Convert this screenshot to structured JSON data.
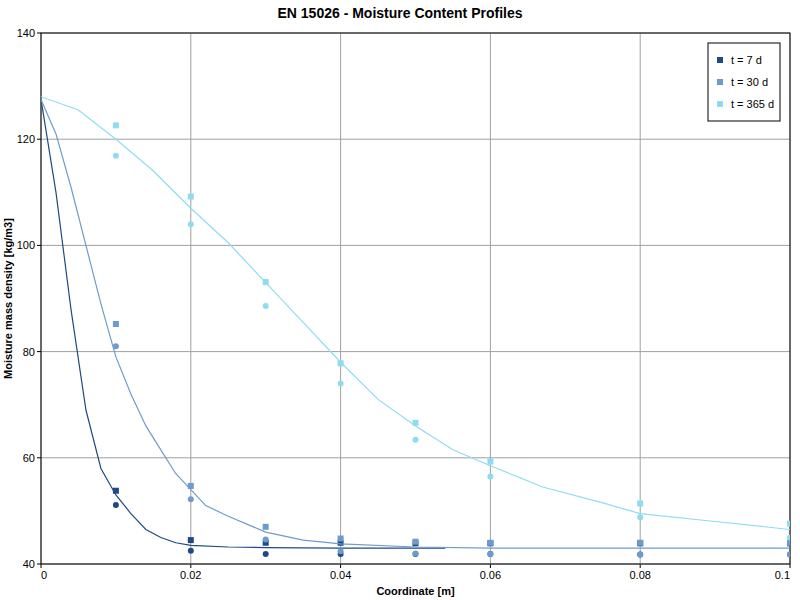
{
  "chart_data": {
    "type": "line",
    "title": "EN 15026 - Moisture Content Profiles",
    "x_label": "Coordinate [m]",
    "y_label": "Moisture mass density [kg/m3]",
    "xlim": [
      0,
      0.1
    ],
    "ylim": [
      40,
      140
    ],
    "xticks": [
      0,
      0.02,
      0.04,
      0.06,
      0.08,
      0.1
    ],
    "yticks": [
      40,
      60,
      80,
      100,
      120,
      140
    ],
    "grid": true,
    "legend": "top-right",
    "series": [
      {
        "name": "t = 7 d",
        "color": "#1d4a86",
        "type": "line",
        "marker": "square",
        "x": [
          0,
          0.002,
          0.004,
          0.006,
          0.008,
          0.01,
          0.012,
          0.014,
          0.016,
          0.018,
          0.02,
          0.025,
          0.03,
          0.04,
          0.054
        ],
        "values": [
          127.5,
          110,
          88,
          69,
          58,
          53,
          49.5,
          46.5,
          45,
          44,
          43.5,
          43.2,
          43.1,
          43.0,
          43.0
        ],
        "markers": [
          {
            "marker": "square",
            "x": [
              0.01,
              0.02,
              0.03,
              0.04,
              0.05,
              0.06,
              0.08,
              0.1
            ],
            "values": [
              53.8,
              44.5,
              44.0,
              44.0,
              43.9,
              43.9,
              43.9,
              43.9
            ]
          },
          {
            "marker": "circle",
            "x": [
              0.01,
              0.02,
              0.03,
              0.04,
              0.05,
              0.06,
              0.08,
              0.1
            ],
            "values": [
              51.1,
              42.5,
              41.9,
              41.9,
              41.9,
              41.9,
              41.8,
              41.8
            ]
          }
        ]
      },
      {
        "name": "t = 30 d",
        "color": "#6f9bcc",
        "type": "line",
        "marker": "square",
        "x": [
          0,
          0.002,
          0.004,
          0.006,
          0.008,
          0.01,
          0.012,
          0.014,
          0.016,
          0.018,
          0.02,
          0.022,
          0.025,
          0.03,
          0.035,
          0.04,
          0.05,
          0.06,
          0.08,
          0.1
        ],
        "values": [
          127.5,
          121,
          111,
          100,
          89,
          79,
          72,
          66,
          61.5,
          57,
          54,
          51,
          49,
          46,
          44.5,
          43.8,
          43.2,
          43.0,
          43.0,
          43.0
        ],
        "markers": [
          {
            "marker": "square",
            "x": [
              0.01,
              0.02,
              0.03,
              0.04,
              0.05,
              0.06,
              0.08,
              0.1
            ],
            "values": [
              85.2,
              54.7,
              47.0,
              44.8,
              44.2,
              44.0,
              44.0,
              44.0
            ]
          },
          {
            "marker": "circle",
            "x": [
              0.01,
              0.02,
              0.03,
              0.04,
              0.05,
              0.06,
              0.08,
              0.1
            ],
            "values": [
              81.0,
              52.2,
              44.6,
              42.4,
              42.0,
              41.9,
              41.8,
              41.8
            ]
          }
        ]
      },
      {
        "name": "t = 365 d",
        "color": "#8fdcf2",
        "type": "line",
        "marker": "square",
        "x": [
          0,
          0.005,
          0.01,
          0.015,
          0.02,
          0.025,
          0.03,
          0.035,
          0.04,
          0.045,
          0.05,
          0.055,
          0.06,
          0.067,
          0.075,
          0.08,
          0.09,
          0.1
        ],
        "values": [
          128,
          125.5,
          120,
          114,
          107,
          100.5,
          93,
          85.5,
          78,
          71,
          66,
          61.5,
          58.5,
          54.5,
          51.5,
          49.5,
          48,
          46.5
        ],
        "markers": [
          {
            "marker": "square",
            "x": [
              0.01,
              0.02,
              0.03,
              0.04,
              0.05,
              0.06,
              0.08,
              0.1
            ],
            "values": [
              122.6,
              109.2,
              93.1,
              77.8,
              66.6,
              59.3,
              51.4,
              47.6
            ]
          },
          {
            "marker": "circle",
            "x": [
              0.01,
              0.02,
              0.03,
              0.04,
              0.05,
              0.06,
              0.08,
              0.1
            ],
            "values": [
              116.9,
              104.0,
              88.6,
              74.0,
              63.4,
              56.5,
              48.8,
              45.0
            ]
          }
        ]
      }
    ]
  }
}
